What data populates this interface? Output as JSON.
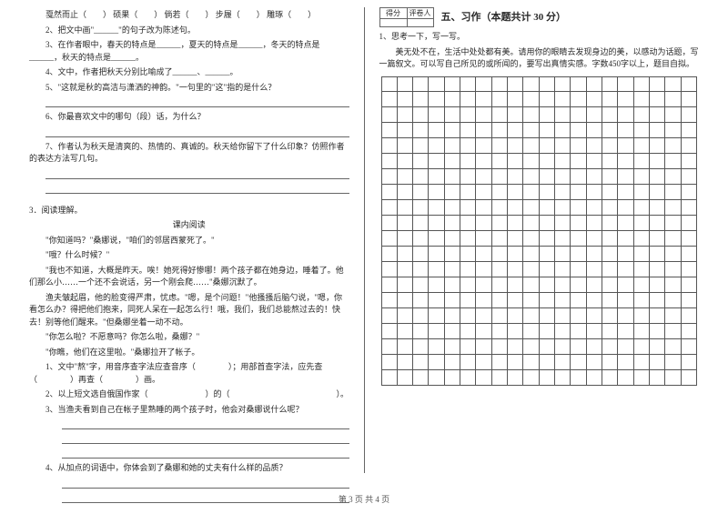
{
  "left": {
    "q2_words": [
      "戛然而止（　　）",
      "硕果（　　）",
      "倘若（　　）",
      "步履（　　）",
      "雕琢（　　）"
    ],
    "q2": "2、把文中画\"______\"的句子改为陈述句。",
    "q3": "3、在作者眼中，春天的特点是______，夏天的特点是______，冬天的特点是______，秋天的特点是______。",
    "q4": "4、文中，作者把秋天分别比喻成了______、______。",
    "q5": "5、\"这就是秋的高洁与潇洒的神韵。\"一句里的\"这\"指的是什么？",
    "q6": "6、你最喜欢文中的哪句（段）话，为什么？",
    "q7": "7、作者认为秋天是清爽的、热情的、真诚的。秋天给你留下了什么印象？仿照作者的表达方法写几句。",
    "sec3": "3．阅读理解。",
    "subhead": "课内阅读",
    "p1": "\"你知道吗？\"桑娜说，\"咱们的邻居西蒙死了。\"",
    "p2": "\"哦？什么时候？\"",
    "p3": "\"我也不知道，大概是昨天。唉！她死得好惨哪！两个孩子都在她身边，睡着了。他们那么小……一个还不会说话，另一个刚会爬……\"桑娜沉默了。",
    "p4": "渔夫皱起眉，他的脸变得严肃，忧虑。\"嗯，是个问题！\"他搔搔后脑勺说，\"嗯，你看怎么办？得把他们抱来，同死人呆在一起怎么行！哦，我们，我们总能熬过去的！快去！别等他们醒来。\"但桑娜坐着一动不动。",
    "p5": "\"你怎么啦？不愿意吗？你怎么啦，桑娜？\"",
    "p6": "\"你瞧，他们在这里啦。\"桑娜拉开了帐子。",
    "cq1": "1、文中\"熬\"字，用音序查字法应查音序（　　　　）；用部首查字法，应先查（　　　　）再查（　　　　）画。",
    "cq2": "2、以上短文选自俄国作家（　　　　　　　）的（　　　　　　　　　　　　　）。",
    "cq3": "3、当渔夫看到自己在帐子里熟睡的两个孩子时，他会对桑娜说什么呢？",
    "cq4": "4、从加点的词语中，你体会到了桑娜和她的丈夫有什么样的品质？"
  },
  "right": {
    "score_labels": [
      "得分",
      "评卷人"
    ],
    "title": "五、习作（本题共计 30 分）",
    "t1": "1、思考一下，写一写。",
    "t2": "美无处不在，生活中处处都有美。请用你的眼睛去发现身边的美，以感动为话题，写一篇叙文。可以写自己所见的或所闻的，要写出真情实感。字数450字以上，题目自拟。"
  },
  "grid": {
    "rows": 20,
    "cols": 20
  },
  "footer": "第 3 页  共 4 页"
}
